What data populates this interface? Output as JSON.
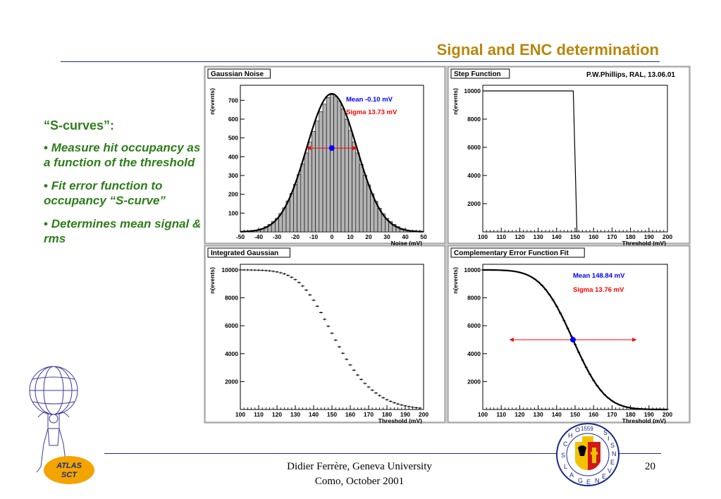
{
  "slide": {
    "title": "Signal and ENC determination",
    "heading": "“S-curves”:",
    "bullets": [
      "Measure hit occupancy as a function of the threshold",
      "Fit error function to occupancy “S-curve”",
      "Determines mean signal & rms"
    ],
    "footer_line1": "Didier Ferrère, Geneva University",
    "footer_line2": "Como, October 2001",
    "page_number": "20",
    "atlas_logo_text": "ATLAS SCT",
    "seal_text": "SCHOLA GENEVENSIS 1559"
  },
  "colors": {
    "title": "#b8860b",
    "bullet_text": "#2e7d1a",
    "rule": "#1a2a8a",
    "panel_bg": "#c8c8c8",
    "histogram_fill": "#b4b4b4",
    "mean_label": "#0000ff",
    "sigma_label": "#ff0000"
  },
  "chart_data": [
    {
      "type": "bar",
      "title": "Gaussian Noise",
      "xlabel": "Noise (mV)",
      "ylabel": "n(events)",
      "xlim": [
        -50,
        50
      ],
      "ylim": [
        0,
        780
      ],
      "x_ticks": [
        -50,
        -40,
        -30,
        -20,
        -10,
        0,
        10,
        20,
        30,
        40,
        50
      ],
      "y_ticks": [
        100,
        200,
        300,
        400,
        500,
        600,
        700
      ],
      "annotations": [
        "Mean -0.10 mV",
        "Sigma 13.73 mV"
      ],
      "mean": -0.1,
      "sigma": 13.73,
      "peak": 735,
      "x": [
        -48,
        -46,
        -44,
        -42,
        -40,
        -38,
        -36,
        -34,
        -32,
        -30,
        -28,
        -26,
        -24,
        -22,
        -20,
        -18,
        -16,
        -14,
        -12,
        -10,
        -8,
        -6,
        -4,
        -2,
        0,
        2,
        4,
        6,
        8,
        10,
        12,
        14,
        16,
        18,
        20,
        22,
        24,
        26,
        28,
        30,
        32,
        34,
        36,
        38,
        40,
        42,
        44,
        46,
        48
      ],
      "values": [
        2,
        4,
        6,
        8,
        12,
        18,
        28,
        40,
        55,
        72,
        98,
        128,
        165,
        205,
        253,
        305,
        362,
        420,
        478,
        535,
        590,
        640,
        680,
        715,
        730,
        720,
        695,
        655,
        600,
        540,
        478,
        420,
        360,
        302,
        250,
        203,
        163,
        126,
        97,
        72,
        55,
        40,
        28,
        18,
        12,
        8,
        5,
        3,
        2
      ]
    },
    {
      "type": "line",
      "title": "Step Function",
      "subtitle": "P.W.Phillips, RAL, 13.06.01",
      "xlabel": "Threshold (mV)",
      "ylabel": "n(events)",
      "xlim": [
        100,
        200
      ],
      "ylim": [
        0,
        10400
      ],
      "x_ticks": [
        100,
        110,
        120,
        130,
        140,
        150,
        160,
        170,
        180,
        190,
        200
      ],
      "y_ticks": [
        2000,
        4000,
        6000,
        8000,
        10000
      ],
      "x": [
        100,
        149,
        151
      ],
      "values": [
        10000,
        10000,
        0
      ]
    },
    {
      "type": "scatter",
      "title": "Integrated Gaussian",
      "xlabel": "Threshold (mV)",
      "ylabel": "n(events)",
      "xlim": [
        100,
        200
      ],
      "ylim": [
        0,
        10400
      ],
      "x_ticks": [
        100,
        110,
        120,
        130,
        140,
        150,
        160,
        170,
        180,
        190,
        200
      ],
      "y_ticks": [
        2000,
        4000,
        6000,
        8000,
        10000
      ],
      "x": [
        100,
        102,
        104,
        106,
        108,
        110,
        112,
        114,
        116,
        118,
        120,
        122,
        124,
        126,
        128,
        130,
        132,
        134,
        136,
        138,
        140,
        142,
        144,
        146,
        148,
        150,
        152,
        154,
        156,
        158,
        160,
        162,
        164,
        166,
        168,
        170,
        172,
        174,
        176,
        178,
        180,
        182,
        184,
        186,
        188,
        190,
        192,
        194,
        196,
        198
      ],
      "values": [
        9997,
        9996,
        9994,
        9990,
        9986,
        9979,
        9968,
        9953,
        9930,
        9898,
        9854,
        9794,
        9713,
        9608,
        9474,
        9305,
        9097,
        8846,
        8550,
        8209,
        7825,
        7400,
        6942,
        6460,
        5962,
        5461,
        4966,
        4488,
        4028,
        3594,
        3189,
        2814,
        2469,
        2154,
        1868,
        1611,
        1382,
        1178,
        998,
        840,
        703,
        584,
        482,
        395,
        321,
        259,
        207,
        164,
        129,
        100
      ]
    },
    {
      "type": "line",
      "title": "Complementary Error Function Fit",
      "xlabel": "Threshold (mV)",
      "ylabel": "n(events)",
      "xlim": [
        100,
        200
      ],
      "ylim": [
        0,
        10400
      ],
      "x_ticks": [
        100,
        110,
        120,
        130,
        140,
        150,
        160,
        170,
        180,
        190,
        200
      ],
      "y_ticks": [
        2000,
        4000,
        6000,
        8000,
        10000
      ],
      "annotations": [
        "Mean 148.84 mV",
        "Sigma 13.76 mV"
      ],
      "mean": 148.84,
      "sigma": 13.76,
      "amplitude": 10000
    }
  ]
}
